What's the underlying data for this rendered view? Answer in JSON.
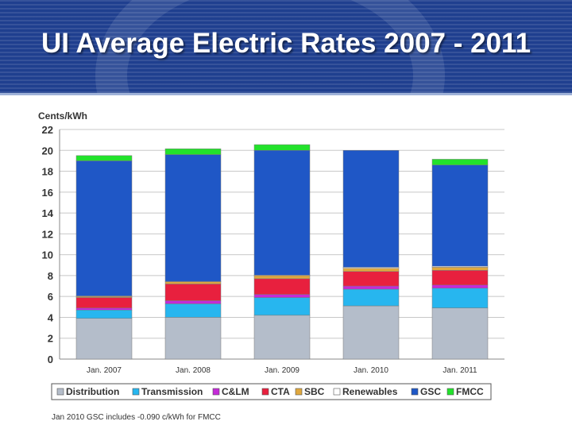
{
  "slide": {
    "title": "UI Average Electric Rates 2007 - 2011",
    "footnote": "Jan 2010 GSC includes -0.090 c/kWh for FMCC"
  },
  "chart_data": {
    "type": "bar",
    "stacked": true,
    "title": "UI Average Electric Rates 2007 - 2011",
    "ylabel": "Cents/kWh",
    "xlabel": "",
    "ylim": [
      0,
      22
    ],
    "yticks": [
      0,
      2,
      4,
      6,
      8,
      10,
      12,
      14,
      16,
      18,
      20,
      22
    ],
    "grid": true,
    "legend_position": "bottom",
    "categories": [
      "Jan. 2007",
      "Jan. 2008",
      "Jan. 2009",
      "Jan. 2010",
      "Jan. 2011"
    ],
    "series": [
      {
        "name": "Distribution",
        "color": "#b4bdca",
        "values": [
          3.9,
          4.0,
          4.2,
          5.1,
          4.9
        ]
      },
      {
        "name": "Transmission",
        "color": "#27b6ef",
        "values": [
          0.8,
          1.3,
          1.7,
          1.6,
          1.9
        ]
      },
      {
        "name": "C&LM",
        "color": "#c42ad8",
        "values": [
          0.2,
          0.3,
          0.3,
          0.3,
          0.3
        ]
      },
      {
        "name": "CTA",
        "color": "#e8203e",
        "values": [
          1.0,
          1.6,
          1.5,
          1.4,
          1.4
        ]
      },
      {
        "name": "SBC",
        "color": "#e0a83e",
        "values": [
          0.1,
          0.2,
          0.3,
          0.3,
          0.3
        ]
      },
      {
        "name": "Renewables",
        "color": "#ffffff",
        "values": [
          0.05,
          0.05,
          0.05,
          0.1,
          0.1
        ]
      },
      {
        "name": "GSC",
        "color": "#1f57c6",
        "values": [
          12.95,
          12.15,
          11.95,
          11.2,
          9.7
        ]
      },
      {
        "name": "FMCC",
        "color": "#22e22b",
        "values": [
          0.5,
          0.55,
          0.55,
          0.0,
          0.55
        ]
      }
    ]
  }
}
